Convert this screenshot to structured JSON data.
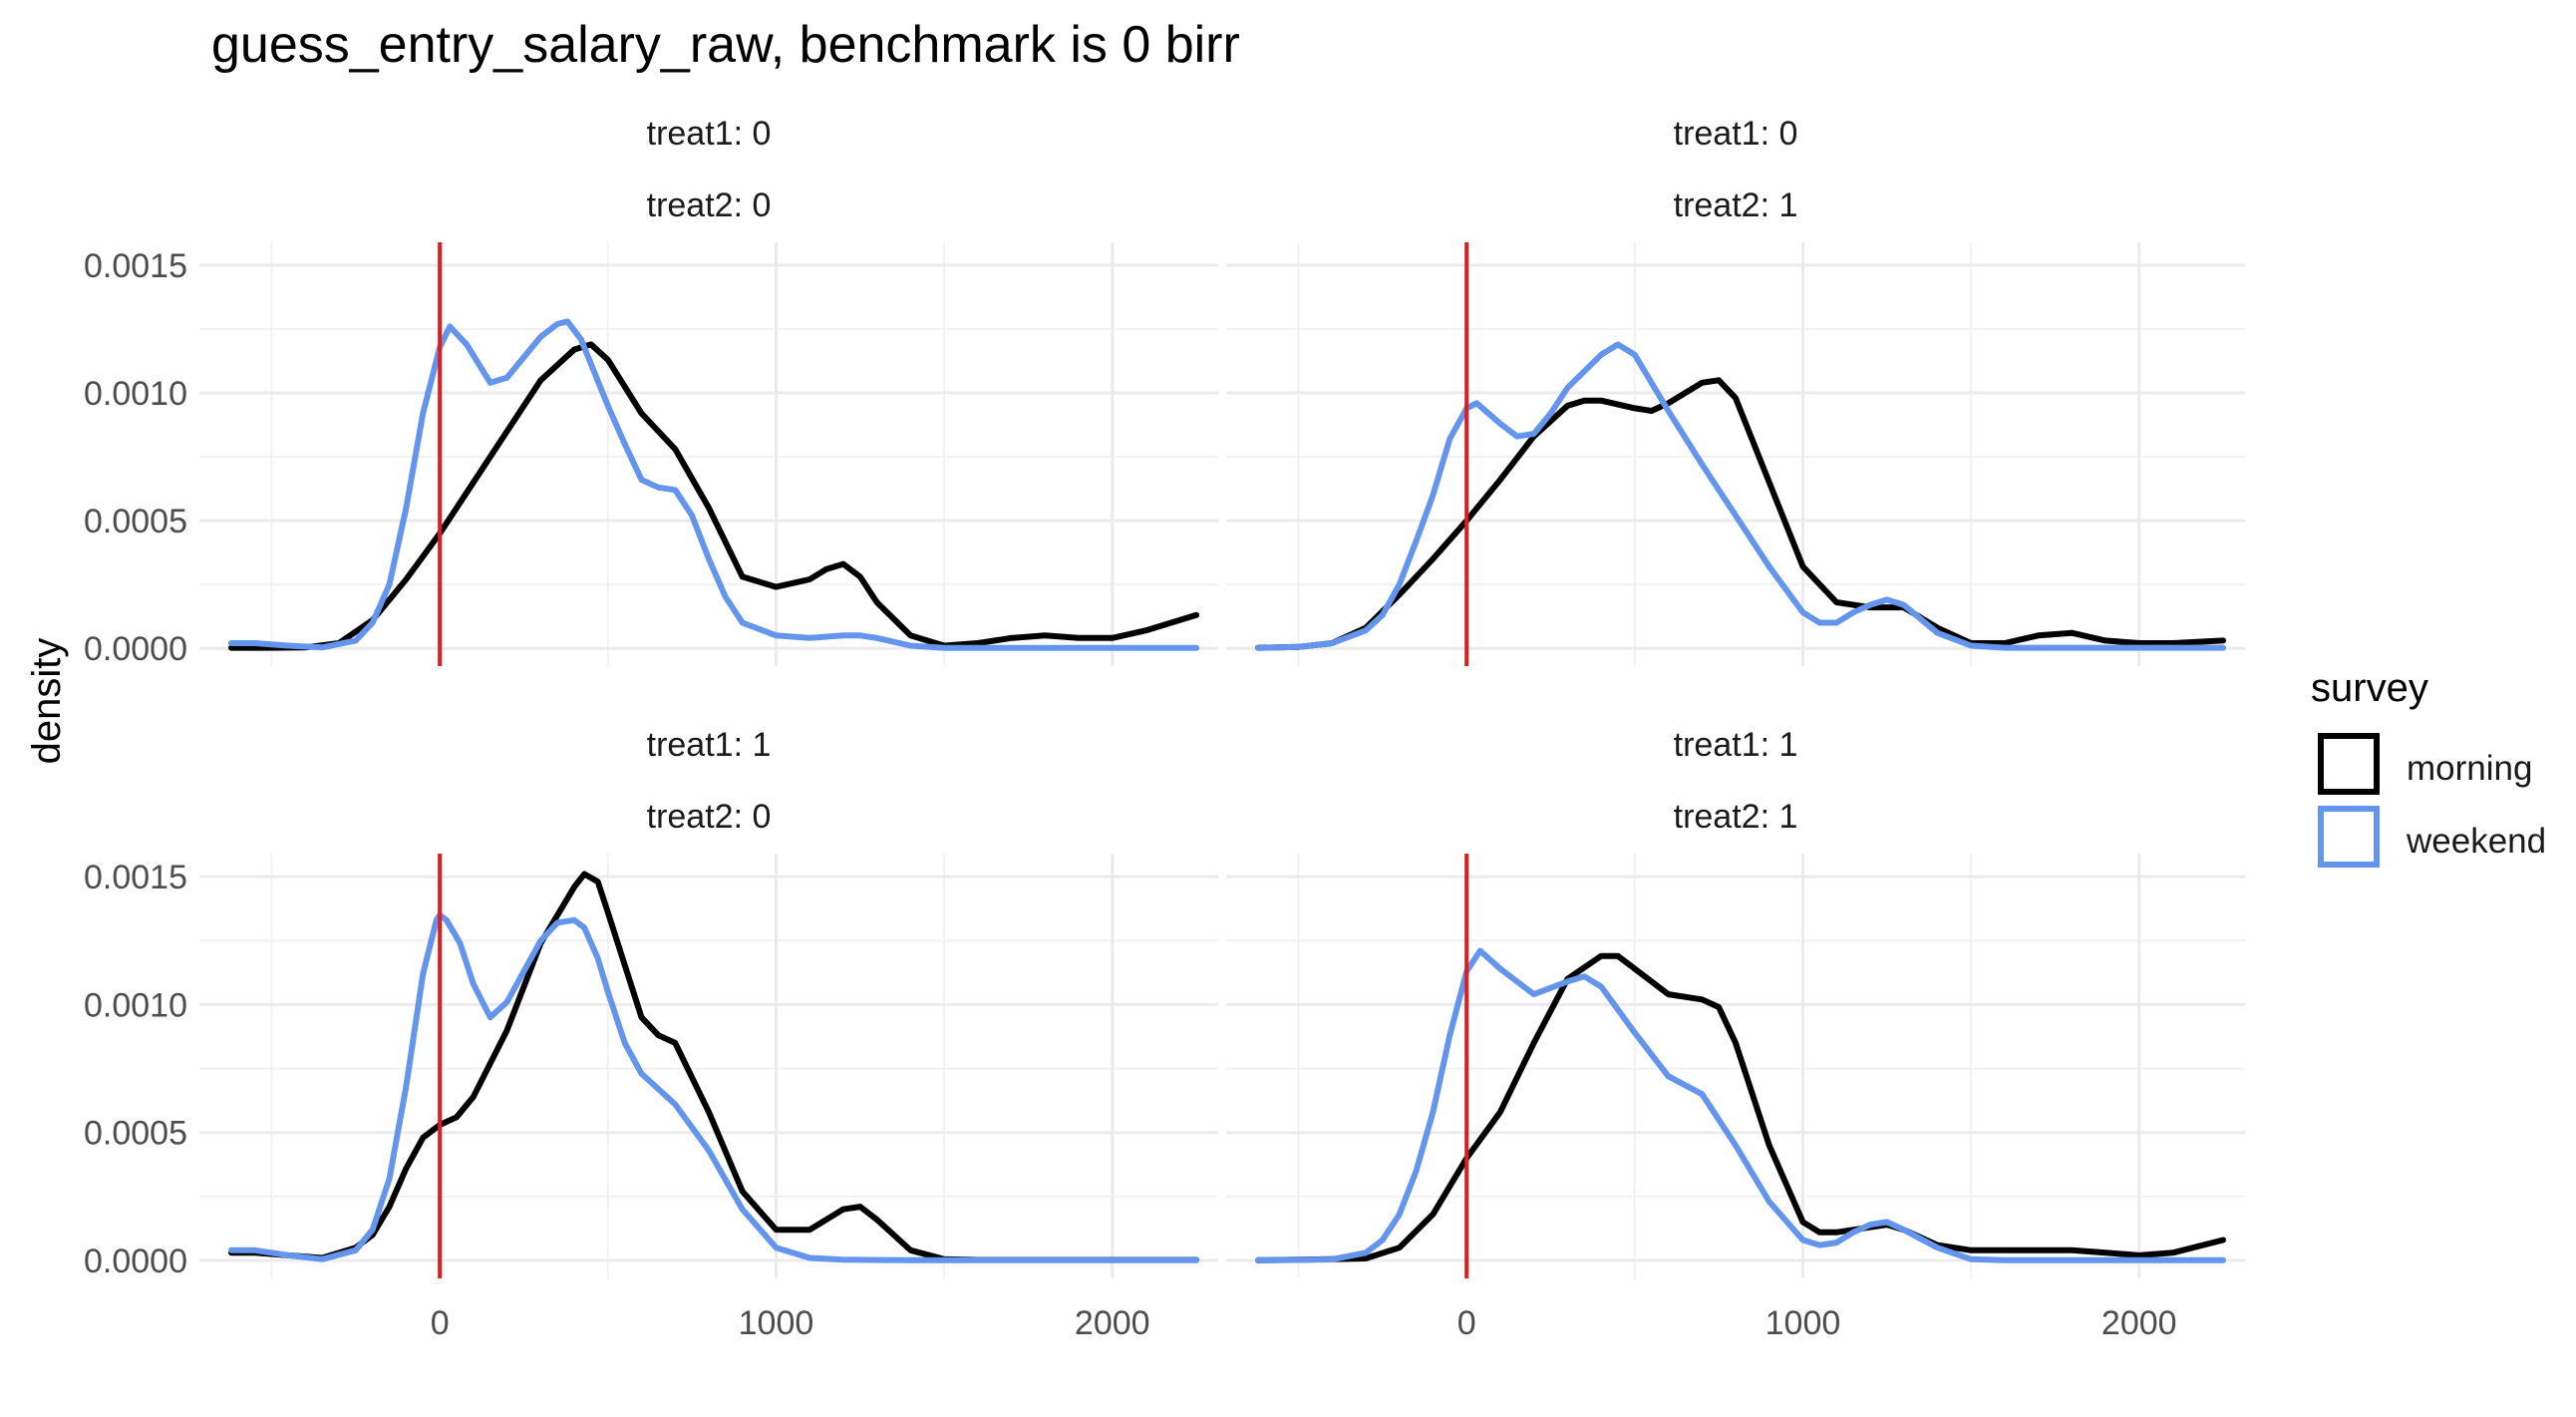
{
  "chart_data": {
    "type": "line",
    "title": "guess_entry_salary_raw, benchmark is 0 birr",
    "ylabel": "density",
    "xlabel": "",
    "xlim": [
      -650,
      2250
    ],
    "ylim": [
      0,
      0.0015
    ],
    "x_ticks": [
      0,
      1000,
      2000
    ],
    "x_tick_labels": [
      "0",
      "1000",
      "2000"
    ],
    "y_ticks": [
      0,
      0.0005,
      0.001,
      0.0015
    ],
    "y_tick_labels": [
      "0.0000",
      "0.0005",
      "0.0010",
      "0.0015"
    ],
    "grid": true,
    "benchmark": {
      "x": 0,
      "color": "#e41a1c"
    },
    "legend": {
      "title": "survey",
      "position": "right",
      "entries": [
        {
          "label": "morning",
          "color": "#000000"
        },
        {
          "label": "weekend",
          "color": "#6495ed"
        }
      ]
    },
    "panels": [
      {
        "strip": [
          "treat1: 0",
          "treat2: 0"
        ],
        "series": [
          {
            "name": "morning",
            "color": "#000000",
            "x": [
              -620,
              -500,
              -400,
              -300,
              -200,
              -100,
              0,
              100,
              200,
              300,
              400,
              450,
              500,
              600,
              700,
              800,
              900,
              1000,
              1100,
              1150,
              1200,
              1250,
              1300,
              1400,
              1500,
              1600,
              1700,
              1800,
              1900,
              2000,
              2100,
              2250
            ],
            "y": [
              2e-06,
              2e-06,
              3e-06,
              2e-05,
              0.00011,
              0.00027,
              0.00045,
              0.00065,
              0.00085,
              0.00105,
              0.00117,
              0.00119,
              0.00113,
              0.00092,
              0.00078,
              0.00055,
              0.00028,
              0.00024,
              0.00027,
              0.00031,
              0.00033,
              0.00028,
              0.00018,
              5e-05,
              1e-05,
              2e-05,
              4e-05,
              5e-05,
              4e-05,
              4e-05,
              7e-05,
              0.00013
            ]
          },
          {
            "name": "weekend",
            "color": "#6495ed",
            "x": [
              -620,
              -550,
              -450,
              -350,
              -250,
              -200,
              -150,
              -100,
              -50,
              0,
              30,
              80,
              150,
              200,
              250,
              300,
              350,
              380,
              420,
              500,
              550,
              600,
              650,
              700,
              750,
              800,
              850,
              900,
              1000,
              1100,
              1200,
              1250,
              1300,
              1400,
              1500,
              2250
            ],
            "y": [
              2e-05,
              2e-05,
              1e-05,
              3e-06,
              3e-05,
              0.0001,
              0.00025,
              0.00055,
              0.00092,
              0.00118,
              0.00126,
              0.00119,
              0.00104,
              0.00106,
              0.00114,
              0.00122,
              0.00127,
              0.00128,
              0.00121,
              0.00095,
              0.0008,
              0.00066,
              0.00063,
              0.00062,
              0.00052,
              0.00035,
              0.0002,
              0.0001,
              5e-05,
              4e-05,
              5e-05,
              5e-05,
              4e-05,
              1e-05,
              1e-06,
              1e-06
            ]
          }
        ]
      },
      {
        "strip": [
          "treat1: 0",
          "treat2: 1"
        ],
        "series": [
          {
            "name": "morning",
            "color": "#000000",
            "x": [
              -620,
              -500,
              -400,
              -300,
              -200,
              -100,
              0,
              100,
              200,
              300,
              350,
              400,
              500,
              550,
              600,
              700,
              750,
              800,
              900,
              1000,
              1100,
              1200,
              1300,
              1400,
              1500,
              1600,
              1700,
              1800,
              1900,
              2000,
              2100,
              2250
            ],
            "y": [
              2e-06,
              5e-06,
              2e-05,
              8e-05,
              0.00021,
              0.00035,
              0.0005,
              0.00066,
              0.00083,
              0.00095,
              0.00097,
              0.00097,
              0.00094,
              0.00093,
              0.00096,
              0.00104,
              0.00105,
              0.00098,
              0.00065,
              0.00032,
              0.00018,
              0.00016,
              0.00016,
              8e-05,
              2e-05,
              2e-05,
              5e-05,
              6e-05,
              3e-05,
              2e-05,
              2e-05,
              3e-05
            ]
          },
          {
            "name": "weekend",
            "color": "#6495ed",
            "x": [
              -620,
              -500,
              -400,
              -300,
              -250,
              -200,
              -150,
              -100,
              -50,
              0,
              30,
              100,
              150,
              200,
              250,
              300,
              400,
              450,
              500,
              600,
              700,
              800,
              900,
              1000,
              1050,
              1100,
              1150,
              1200,
              1250,
              1300,
              1400,
              1500,
              1600,
              2250
            ],
            "y": [
              1e-06,
              5e-06,
              2e-05,
              7e-05,
              0.00013,
              0.00025,
              0.00042,
              0.0006,
              0.00082,
              0.00094,
              0.00096,
              0.00088,
              0.00083,
              0.00084,
              0.00092,
              0.00102,
              0.00115,
              0.00119,
              0.00115,
              0.00093,
              0.00072,
              0.00052,
              0.00032,
              0.00014,
              0.0001,
              0.0001,
              0.00014,
              0.00017,
              0.00019,
              0.00017,
              6e-05,
              1e-05,
              2e-06,
              2e-06
            ]
          }
        ]
      },
      {
        "strip": [
          "treat1: 1",
          "treat2: 0"
        ],
        "series": [
          {
            "name": "morning",
            "color": "#000000",
            "x": [
              -620,
              -550,
              -450,
              -350,
              -250,
              -200,
              -150,
              -100,
              -50,
              0,
              50,
              100,
              200,
              300,
              400,
              430,
              470,
              500,
              600,
              650,
              700,
              800,
              900,
              1000,
              1100,
              1200,
              1250,
              1300,
              1400,
              1500,
              1600,
              2250
            ],
            "y": [
              3e-05,
              3e-05,
              2e-05,
              1e-05,
              5e-05,
              0.0001,
              0.00021,
              0.00036,
              0.00048,
              0.00053,
              0.00056,
              0.00064,
              0.0009,
              0.00124,
              0.00146,
              0.00151,
              0.00148,
              0.00136,
              0.00095,
              0.00088,
              0.00085,
              0.00058,
              0.00027,
              0.00012,
              0.00012,
              0.0002,
              0.00021,
              0.00016,
              4e-05,
              5e-06,
              2e-06,
              2e-06
            ]
          },
          {
            "name": "weekend",
            "color": "#6495ed",
            "x": [
              -620,
              -550,
              -450,
              -350,
              -250,
              -200,
              -150,
              -100,
              -50,
              -10,
              0,
              20,
              60,
              100,
              150,
              200,
              250,
              300,
              350,
              400,
              430,
              470,
              500,
              550,
              600,
              700,
              800,
              900,
              1000,
              1100,
              1200,
              1400,
              2250
            ],
            "y": [
              4e-05,
              4e-05,
              2e-05,
              5e-06,
              4e-05,
              0.00012,
              0.00032,
              0.00068,
              0.00112,
              0.00133,
              0.00135,
              0.00133,
              0.00124,
              0.00108,
              0.00095,
              0.00101,
              0.00113,
              0.00125,
              0.00132,
              0.00133,
              0.0013,
              0.00118,
              0.00105,
              0.00085,
              0.00073,
              0.00061,
              0.00043,
              0.0002,
              5e-05,
              1e-05,
              3e-06,
              1e-06,
              1e-06
            ]
          }
        ]
      },
      {
        "strip": [
          "treat1: 1",
          "treat2: 1"
        ],
        "series": [
          {
            "name": "morning",
            "color": "#000000",
            "x": [
              -620,
              -500,
              -400,
              -300,
              -200,
              -100,
              0,
              100,
              200,
              300,
              400,
              450,
              500,
              600,
              700,
              750,
              800,
              900,
              1000,
              1050,
              1100,
              1200,
              1250,
              1300,
              1400,
              1500,
              1600,
              1700,
              1800,
              1900,
              2000,
              2100,
              2250
            ],
            "y": [
              1e-06,
              3e-06,
              5e-06,
              8e-06,
              5e-05,
              0.00018,
              0.0004,
              0.00058,
              0.00085,
              0.0011,
              0.00119,
              0.00119,
              0.00114,
              0.00104,
              0.00102,
              0.00099,
              0.00085,
              0.00045,
              0.00015,
              0.00011,
              0.00011,
              0.00013,
              0.00014,
              0.00012,
              6e-05,
              4e-05,
              4e-05,
              4e-05,
              4e-05,
              3e-05,
              2e-05,
              3e-05,
              8e-05
            ]
          },
          {
            "name": "weekend",
            "color": "#6495ed",
            "x": [
              -620,
              -500,
              -400,
              -300,
              -250,
              -200,
              -150,
              -100,
              -50,
              0,
              40,
              100,
              200,
              300,
              350,
              400,
              500,
              600,
              700,
              800,
              900,
              1000,
              1050,
              1100,
              1150,
              1200,
              1250,
              1300,
              1400,
              1500,
              1600,
              2250
            ],
            "y": [
              1e-06,
              2e-06,
              4e-06,
              3e-05,
              8e-05,
              0.00018,
              0.00035,
              0.00058,
              0.00088,
              0.00113,
              0.00121,
              0.00114,
              0.00104,
              0.00109,
              0.00111,
              0.00107,
              0.00089,
              0.00072,
              0.00065,
              0.00045,
              0.00023,
              8e-05,
              6e-05,
              7e-05,
              0.00011,
              0.00014,
              0.00015,
              0.00012,
              5e-05,
              5e-06,
              1e-06,
              1e-06
            ]
          }
        ]
      }
    ]
  }
}
